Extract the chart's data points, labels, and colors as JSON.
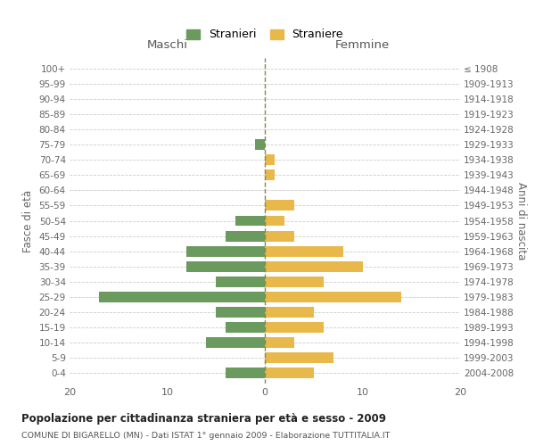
{
  "age_groups": [
    "0-4",
    "5-9",
    "10-14",
    "15-19",
    "20-24",
    "25-29",
    "30-34",
    "35-39",
    "40-44",
    "45-49",
    "50-54",
    "55-59",
    "60-64",
    "65-69",
    "70-74",
    "75-79",
    "80-84",
    "85-89",
    "90-94",
    "95-99",
    "100+"
  ],
  "birth_years": [
    "2004-2008",
    "1999-2003",
    "1994-1998",
    "1989-1993",
    "1984-1988",
    "1979-1983",
    "1974-1978",
    "1969-1973",
    "1964-1968",
    "1959-1963",
    "1954-1958",
    "1949-1953",
    "1944-1948",
    "1939-1943",
    "1934-1938",
    "1929-1933",
    "1924-1928",
    "1919-1923",
    "1914-1918",
    "1909-1913",
    "≤ 1908"
  ],
  "maschi": [
    4,
    0,
    6,
    4,
    5,
    17,
    5,
    8,
    8,
    4,
    3,
    0,
    0,
    0,
    0,
    1,
    0,
    0,
    0,
    0,
    0
  ],
  "femmine": [
    5,
    7,
    3,
    6,
    5,
    14,
    6,
    10,
    8,
    3,
    2,
    3,
    0,
    1,
    1,
    0,
    0,
    0,
    0,
    0,
    0
  ],
  "color_maschi": "#6b9a5e",
  "color_femmine": "#e8b84b",
  "title": "Popolazione per cittadinanza straniera per età e sesso - 2009",
  "subtitle": "COMUNE DI BIGARELLO (MN) - Dati ISTAT 1° gennaio 2009 - Elaborazione TUTTITALIA.IT",
  "xlabel_left": "Maschi",
  "xlabel_right": "Femmine",
  "ylabel_left": "Fasce di età",
  "ylabel_right": "Anni di nascita",
  "legend_maschi": "Stranieri",
  "legend_femmine": "Straniere",
  "xlim": 20,
  "background_color": "#ffffff",
  "grid_color": "#cccccc"
}
